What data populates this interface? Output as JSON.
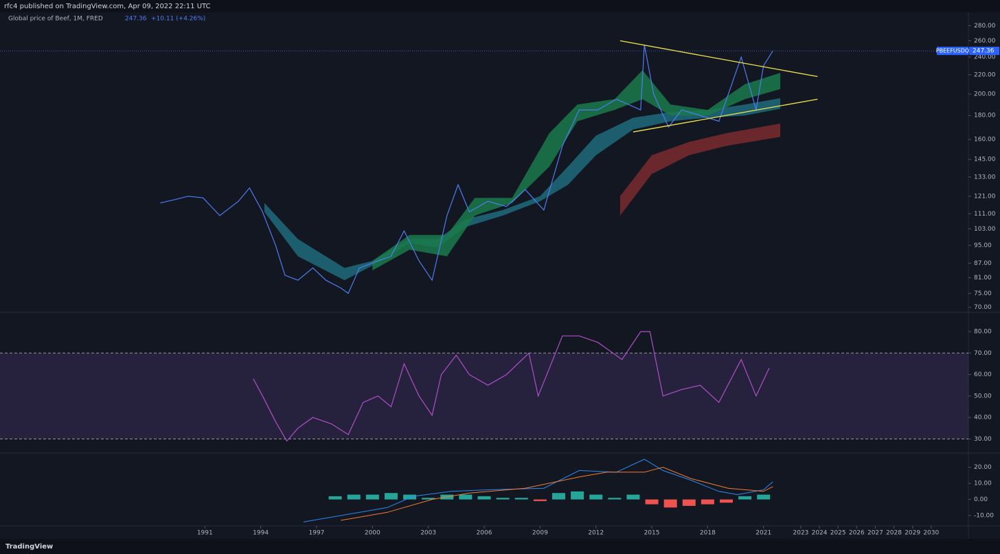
{
  "header": {
    "title": "rfc4 published on TradingView.com, Apr 09, 2022 22:11 UTC"
  },
  "footer": {
    "brand": "TradingView"
  },
  "chart_data": [
    {
      "type": "line",
      "scale": "log",
      "symbol": "PBEEFUSDQ",
      "change": "+10.11 (+4.26%)",
      "ylim": [
        69,
        295
      ],
      "yticks": [
        {
          "value": 70,
          "label": "70.00"
        },
        {
          "value": 75,
          "label": "75.00"
        },
        {
          "value": 81,
          "label": "81.00"
        },
        {
          "value": 87,
          "label": "87.00"
        },
        {
          "value": 95,
          "label": "95.00"
        },
        {
          "value": 103,
          "label": "103.00"
        },
        {
          "value": 111,
          "label": "111.00"
        },
        {
          "value": 121,
          "label": "121.00"
        },
        {
          "value": 133,
          "label": "133.00"
        },
        {
          "value": 145,
          "label": "145.00"
        },
        {
          "value": 160,
          "label": "160.00"
        },
        {
          "value": 180,
          "label": "180.00"
        },
        {
          "value": 200,
          "label": "200.00"
        },
        {
          "value": 220,
          "label": "220.00"
        },
        {
          "value": 240,
          "label": "240.00"
        },
        {
          "value": 260,
          "label": "260.00"
        },
        {
          "value": 280,
          "label": "280.00"
        }
      ],
      "series": [
        {
          "name": "Global price of Beef, 1M, FRED",
          "color": "#4f7df3",
          "x": [
            1988.6,
            1989.4,
            1990.1,
            1990.9,
            1991.8,
            1992.8,
            1993.4,
            1994.1,
            1994.8,
            1995.3,
            1996.0,
            1996.8,
            1997.5,
            1998.3,
            1998.7,
            1999.3,
            2000.3,
            2001.0,
            2001.7,
            2002.5,
            2003.2,
            2004.0,
            2004.6,
            2005.2,
            2006.2,
            2007.2,
            2008.2,
            2009.2,
            2010.2,
            2011.1,
            2012.1,
            2013.1,
            2014.4,
            2014.6,
            2015.1,
            2015.9,
            2016.6,
            2017.6,
            2018.6,
            2019.8,
            2020.6,
            2021.0,
            2021.5
          ],
          "values": [
            117,
            119,
            121,
            120,
            110,
            118,
            126,
            112,
            95,
            82,
            80,
            85,
            80,
            77,
            75,
            85,
            88,
            90,
            102,
            88,
            80,
            110,
            128,
            112,
            118,
            115,
            125,
            113,
            155,
            185,
            185,
            195,
            185,
            255,
            200,
            170,
            185,
            180,
            175,
            240,
            185,
            230,
            247.36
          ]
        }
      ],
      "bands": [
        {
          "color": "#1f6b7a",
          "x": [
            1994.2,
            1996,
            1998.5,
            2000,
            2002,
            2003.5,
            2005,
            2007,
            2009,
            2010.5,
            2012,
            2014,
            2016,
            2018,
            2020,
            2021.9
          ],
          "upper": [
            117,
            98,
            85,
            88,
            98,
            98,
            108,
            113,
            121,
            140,
            163,
            178,
            183,
            185,
            190,
            196
          ],
          "lower": [
            112,
            90,
            80,
            86,
            96,
            94,
            104,
            110,
            118,
            128,
            148,
            168,
            175,
            178,
            180,
            186
          ]
        },
        {
          "color": "#1a7a4a",
          "x": [
            2000,
            2002,
            2004,
            2005.5,
            2007.5,
            2009.5,
            2011,
            2013,
            2014.5,
            2016,
            2018,
            2020,
            2021.9
          ],
          "upper": [
            88,
            100,
            100,
            120,
            120,
            165,
            190,
            195,
            225,
            190,
            185,
            210,
            222
          ],
          "lower": [
            84,
            93,
            90,
            110,
            117,
            140,
            175,
            185,
            195,
            180,
            180,
            195,
            205
          ]
        },
        {
          "color": "#7a2b2e",
          "x": [
            2013.3,
            2015,
            2017,
            2019,
            2021.9
          ],
          "upper": [
            121,
            148,
            158,
            165,
            173
          ],
          "lower": [
            110,
            135,
            148,
            155,
            162
          ]
        }
      ],
      "trendlines": [
        {
          "color": "#f5e84a",
          "x": [
            2013.3,
            2023.9
          ],
          "y": [
            260,
            218
          ]
        },
        {
          "color": "#f5e84a",
          "x": [
            2014,
            2023.9
          ],
          "y": [
            166,
            195
          ]
        }
      ]
    },
    {
      "type": "line",
      "ylim": [
        25,
        88
      ],
      "yticks": [
        {
          "value": 30,
          "label": "30.00"
        },
        {
          "value": 40,
          "label": "40.00"
        },
        {
          "value": 50,
          "label": "50.00"
        },
        {
          "value": 60,
          "label": "60.00"
        },
        {
          "value": 70,
          "label": "70.00"
        },
        {
          "value": 80,
          "label": "80.00"
        }
      ],
      "levels": [
        30,
        70
      ],
      "series": [
        {
          "color": "#b04fc9",
          "x": [
            1993.6,
            1994.1,
            1994.8,
            1995.4,
            1996,
            1996.8,
            1997.8,
            1998.7,
            1999.5,
            2000.3,
            2001,
            2001.7,
            2002.5,
            2003.2,
            2003.7,
            2004.5,
            2005.2,
            2006.2,
            2007.2,
            2008.4,
            2008.9,
            2010.2,
            2011.1,
            2012.1,
            2013.4,
            2014.4,
            2014.9,
            2015.6,
            2016.6,
            2017.6,
            2018.6,
            2019.8,
            2020.6,
            2021.3
          ],
          "values": [
            58,
            50,
            38,
            29,
            35,
            40,
            37,
            32,
            47,
            50,
            45,
            65,
            50,
            41,
            60,
            69,
            60,
            55,
            60,
            70,
            50,
            78,
            78,
            75,
            67,
            80,
            80,
            50,
            53,
            55,
            47,
            67,
            50,
            63
          ]
        }
      ]
    },
    {
      "type": "macd",
      "ylim": [
        -16,
        28
      ],
      "yticks": [
        {
          "value": -10,
          "label": "-10.00"
        },
        {
          "value": 0,
          "label": "0.00"
        },
        {
          "value": 10,
          "label": "10.00"
        },
        {
          "value": 20,
          "label": "20.00"
        }
      ],
      "xlim": [
        1980,
        2032
      ],
      "xticks": [
        1991,
        1994,
        1997,
        2000,
        2003,
        2006,
        2009,
        2012,
        2015,
        2018,
        2021,
        2023,
        2024,
        2025,
        2026,
        2027,
        2028,
        2029,
        2030
      ],
      "series": [
        {
          "color": "#2a8cf2",
          "x": [
            1996.3,
            1998.3,
            2000.8,
            2002.2,
            2004.2,
            2006.2,
            2009.2,
            2011.1,
            2013.1,
            2014.6,
            2015.6,
            2017.1,
            2018.6,
            2019.6,
            2021,
            2021.5
          ],
          "values": [
            -14,
            -10,
            -5,
            2,
            5,
            6,
            7,
            18,
            17,
            25,
            18,
            12,
            5,
            3,
            6,
            11
          ]
        },
        {
          "color": "#f57c30",
          "x": [
            1998.3,
            2000.8,
            2003.2,
            2005.2,
            2008.2,
            2011.1,
            2012.6,
            2014.6,
            2015.6,
            2017.1,
            2019.1,
            2021,
            2021.5
          ],
          "values": [
            -13,
            -8,
            0,
            4,
            7,
            14,
            17,
            17,
            20,
            13,
            7,
            5,
            8
          ]
        }
      ],
      "histogram": {
        "pos_color": "#26a69a",
        "neg_color": "#ef5350",
        "x": [
          1998,
          1999,
          2000,
          2001,
          2002,
          2003,
          2004,
          2005,
          2006,
          2007,
          2008,
          2009,
          2010,
          2011,
          2012,
          2013,
          2014,
          2015,
          2016,
          2017,
          2018,
          2019,
          2020,
          2021
        ],
        "values": [
          2,
          3,
          3,
          4,
          3,
          1,
          3,
          3,
          2,
          1,
          1,
          -1,
          4,
          5,
          3,
          1,
          3,
          -3,
          -5,
          -4,
          -3,
          -2,
          2,
          3
        ]
      }
    }
  ]
}
